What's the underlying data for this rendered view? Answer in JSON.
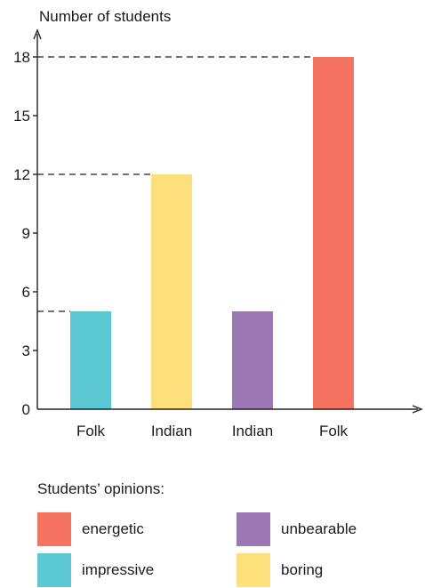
{
  "chart_data": {
    "type": "bar",
    "ylabel": "Number of students",
    "categories": [
      "Folk",
      "Indian",
      "Indian",
      "Folk"
    ],
    "values": [
      5,
      12,
      5,
      18
    ],
    "bar_colors": [
      "#5bc8d4",
      "#fde07c",
      "#9b78b3",
      "#f47260"
    ],
    "bar_opinions": [
      "impressive",
      "boring",
      "unbearable",
      "energetic"
    ],
    "yticks": [
      0,
      3,
      6,
      9,
      12,
      15,
      18
    ],
    "ylim": [
      0,
      18
    ],
    "reference_lines": [
      18,
      12,
      5
    ],
    "grid": false
  },
  "legend": {
    "title": "Students’ opinions:",
    "items": [
      {
        "label": "energetic",
        "color": "#f47260"
      },
      {
        "label": "unbearable",
        "color": "#9b78b3"
      },
      {
        "label": "impressive",
        "color": "#5bc8d4"
      },
      {
        "label": "boring",
        "color": "#fde07c"
      }
    ]
  }
}
